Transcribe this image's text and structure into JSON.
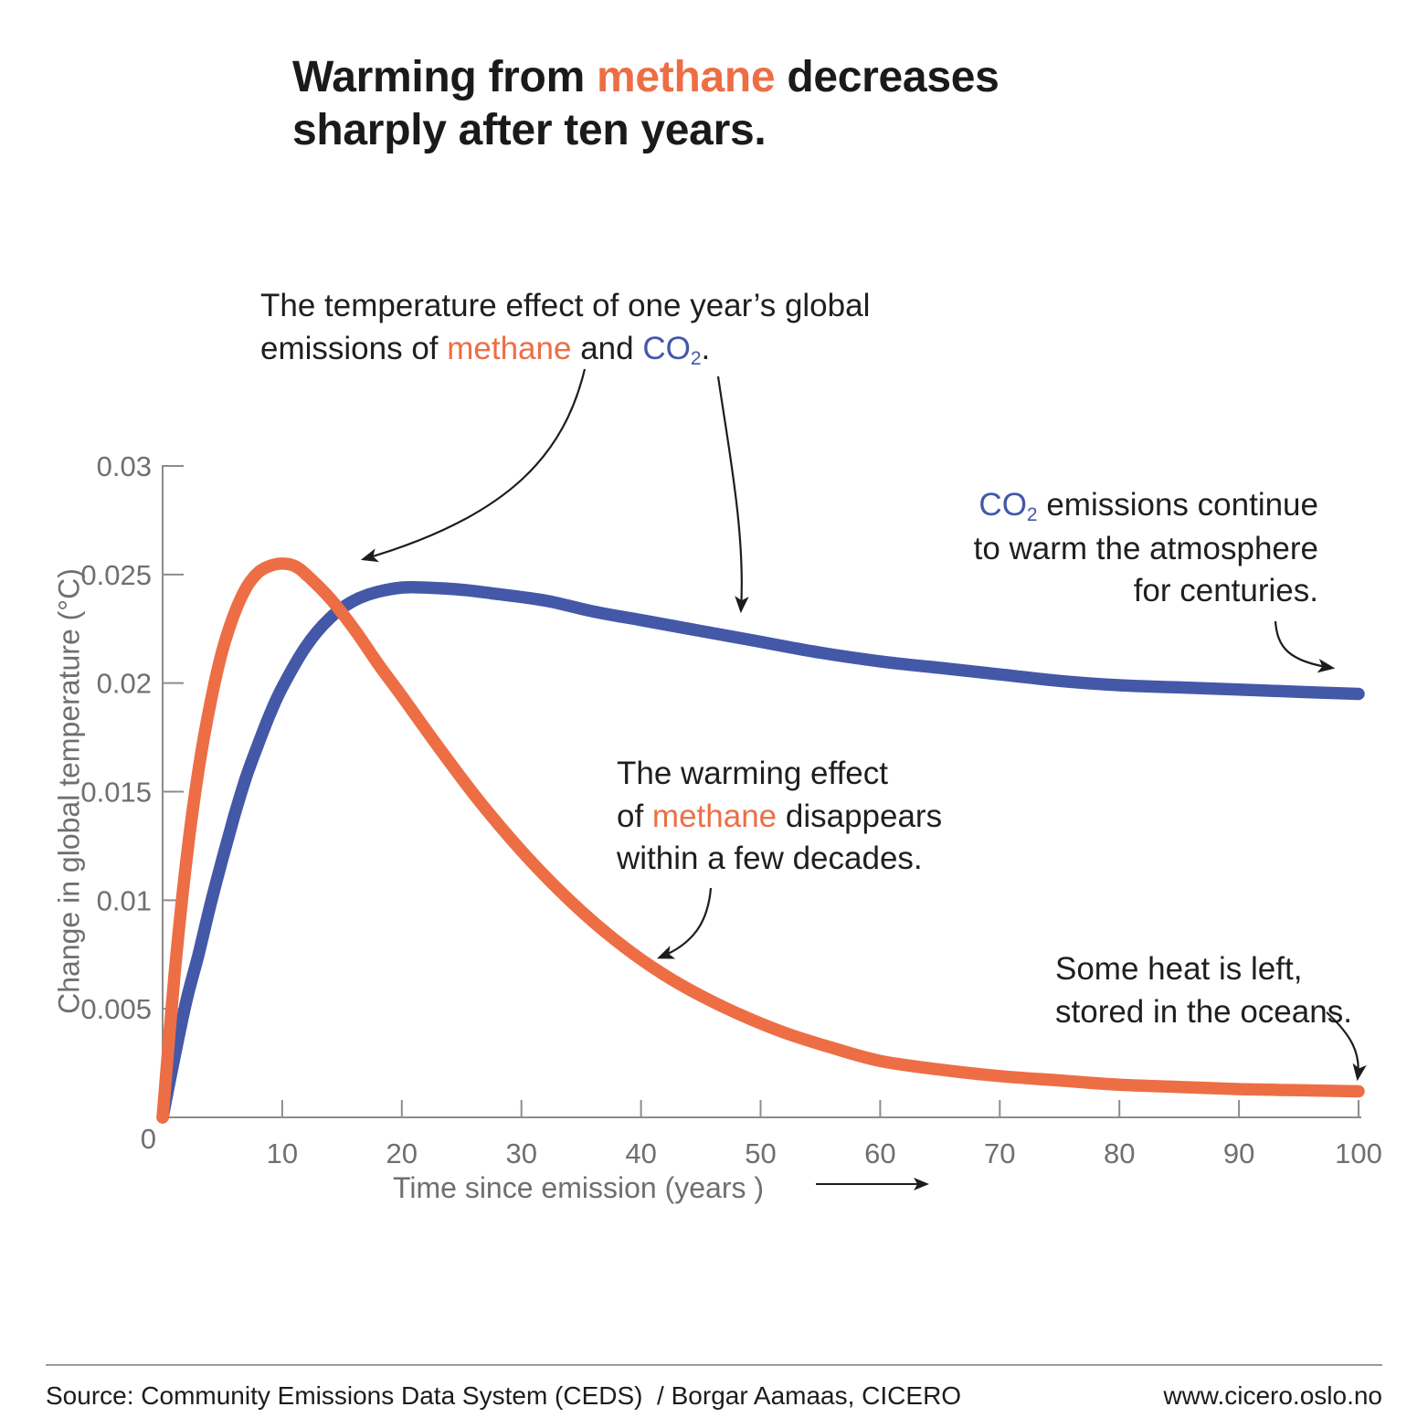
{
  "colors": {
    "methane": "#ED6E45",
    "co2": "#4458A8",
    "text": "#1F1F1F",
    "axis": "#8C8C8C",
    "muted_label": "#6F6F6F"
  },
  "title": {
    "segments": [
      {
        "t": "Warming from "
      },
      {
        "t": "methane",
        "color": "methane"
      },
      {
        "t": " decreases\nsharply after ten years."
      }
    ]
  },
  "annotations": {
    "effect": {
      "segments": [
        {
          "t": "The temperature effect of one year’s global\nemissions of "
        },
        {
          "t": "methane",
          "color": "methane"
        },
        {
          "t": " and "
        },
        {
          "t": "CO",
          "color": "co2"
        },
        {
          "t": "2",
          "color": "co2",
          "sub": true
        },
        {
          "t": "."
        }
      ]
    },
    "co2_continues": {
      "segments": [
        {
          "t": "CO",
          "color": "co2"
        },
        {
          "t": "2",
          "color": "co2",
          "sub": true
        },
        {
          "t": " emissions continue\nto warm the atmosphere\nfor centuries."
        }
      ]
    },
    "methane_disappears": {
      "segments": [
        {
          "t": "The warming effect\nof "
        },
        {
          "t": "methane",
          "color": "methane"
        },
        {
          "t": " disappears\nwithin a few decades."
        }
      ]
    },
    "some_heat": {
      "segments": [
        {
          "t": "Some heat is left,\nstored in the oceans."
        }
      ]
    }
  },
  "chart_data": {
    "type": "line",
    "title": "Warming from methane decreases sharply after ten years.",
    "xlabel": "Time since emission (years )",
    "ylabel": "Change in global temperature (°C)",
    "xlim": [
      0,
      100
    ],
    "ylim": [
      0,
      0.03
    ],
    "xticks": [
      10,
      20,
      30,
      40,
      50,
      60,
      70,
      80,
      90,
      100
    ],
    "yticks": [
      0,
      0.005,
      0.01,
      0.015,
      0.02,
      0.025,
      0.03
    ],
    "grid": false,
    "legend": "none (series identified by colored words in annotations)",
    "annotations_text": [
      "The temperature effect of one year's global emissions of methane and CO2.",
      "CO2 emissions continue to warm the atmosphere for centuries.",
      "The warming effect of methane disappears within a few decades.",
      "Some heat is left, stored in the oceans."
    ],
    "series": [
      {
        "name": "Methane",
        "color": "#ED6E45",
        "peak": {
          "x": 10,
          "y": 0.0255
        },
        "points": [
          [
            0,
            0
          ],
          [
            1,
            0.0066
          ],
          [
            2,
            0.0119
          ],
          [
            3,
            0.016
          ],
          [
            4,
            0.0191
          ],
          [
            5,
            0.0215
          ],
          [
            6,
            0.0232
          ],
          [
            7,
            0.0244
          ],
          [
            8,
            0.0251
          ],
          [
            9,
            0.0254
          ],
          [
            10,
            0.0255
          ],
          [
            11,
            0.0254
          ],
          [
            12,
            0.025
          ],
          [
            14,
            0.0239
          ],
          [
            16,
            0.0225
          ],
          [
            18,
            0.0209
          ],
          [
            20,
            0.0194
          ],
          [
            23,
            0.0171
          ],
          [
            26,
            0.0149
          ],
          [
            29,
            0.0129
          ],
          [
            32,
            0.0111
          ],
          [
            35,
            0.0095
          ],
          [
            38,
            0.0081
          ],
          [
            41,
            0.0069
          ],
          [
            44,
            0.0059
          ],
          [
            48,
            0.0048
          ],
          [
            52,
            0.0039
          ],
          [
            56,
            0.0032
          ],
          [
            60,
            0.0026
          ],
          [
            65,
            0.0022
          ],
          [
            70,
            0.0019
          ],
          [
            75,
            0.0017
          ],
          [
            80,
            0.0015
          ],
          [
            85,
            0.0014
          ],
          [
            90,
            0.0013
          ],
          [
            95,
            0.00125
          ],
          [
            100,
            0.0012
          ]
        ]
      },
      {
        "name": "CO2",
        "color": "#4458A8",
        "peak": {
          "x": 21,
          "y": 0.0244
        },
        "points": [
          [
            0,
            0
          ],
          [
            1,
            0.0028
          ],
          [
            2,
            0.0054
          ],
          [
            3,
            0.0075
          ],
          [
            4,
            0.0098
          ],
          [
            5,
            0.0119
          ],
          [
            6,
            0.0139
          ],
          [
            7,
            0.0157
          ],
          [
            8,
            0.0172
          ],
          [
            9,
            0.0186
          ],
          [
            10,
            0.0198
          ],
          [
            12,
            0.0217
          ],
          [
            14,
            0.023
          ],
          [
            16,
            0.0238
          ],
          [
            18,
            0.0242
          ],
          [
            20,
            0.0244
          ],
          [
            22,
            0.0244
          ],
          [
            25,
            0.0243
          ],
          [
            28,
            0.0241
          ],
          [
            32,
            0.0238
          ],
          [
            36,
            0.0233
          ],
          [
            40,
            0.0229
          ],
          [
            45,
            0.0224
          ],
          [
            50,
            0.0219
          ],
          [
            55,
            0.0214
          ],
          [
            60,
            0.021
          ],
          [
            65,
            0.0207
          ],
          [
            70,
            0.0204
          ],
          [
            75,
            0.0201
          ],
          [
            80,
            0.0199
          ],
          [
            85,
            0.0198
          ],
          [
            90,
            0.0197
          ],
          [
            95,
            0.0196
          ],
          [
            100,
            0.0195
          ]
        ]
      }
    ]
  },
  "footer": {
    "source": "Source: Community Emissions Data System (CEDS)  / Borgar Aamaas, CICERO",
    "url": "www.cicero.oslo.no"
  }
}
